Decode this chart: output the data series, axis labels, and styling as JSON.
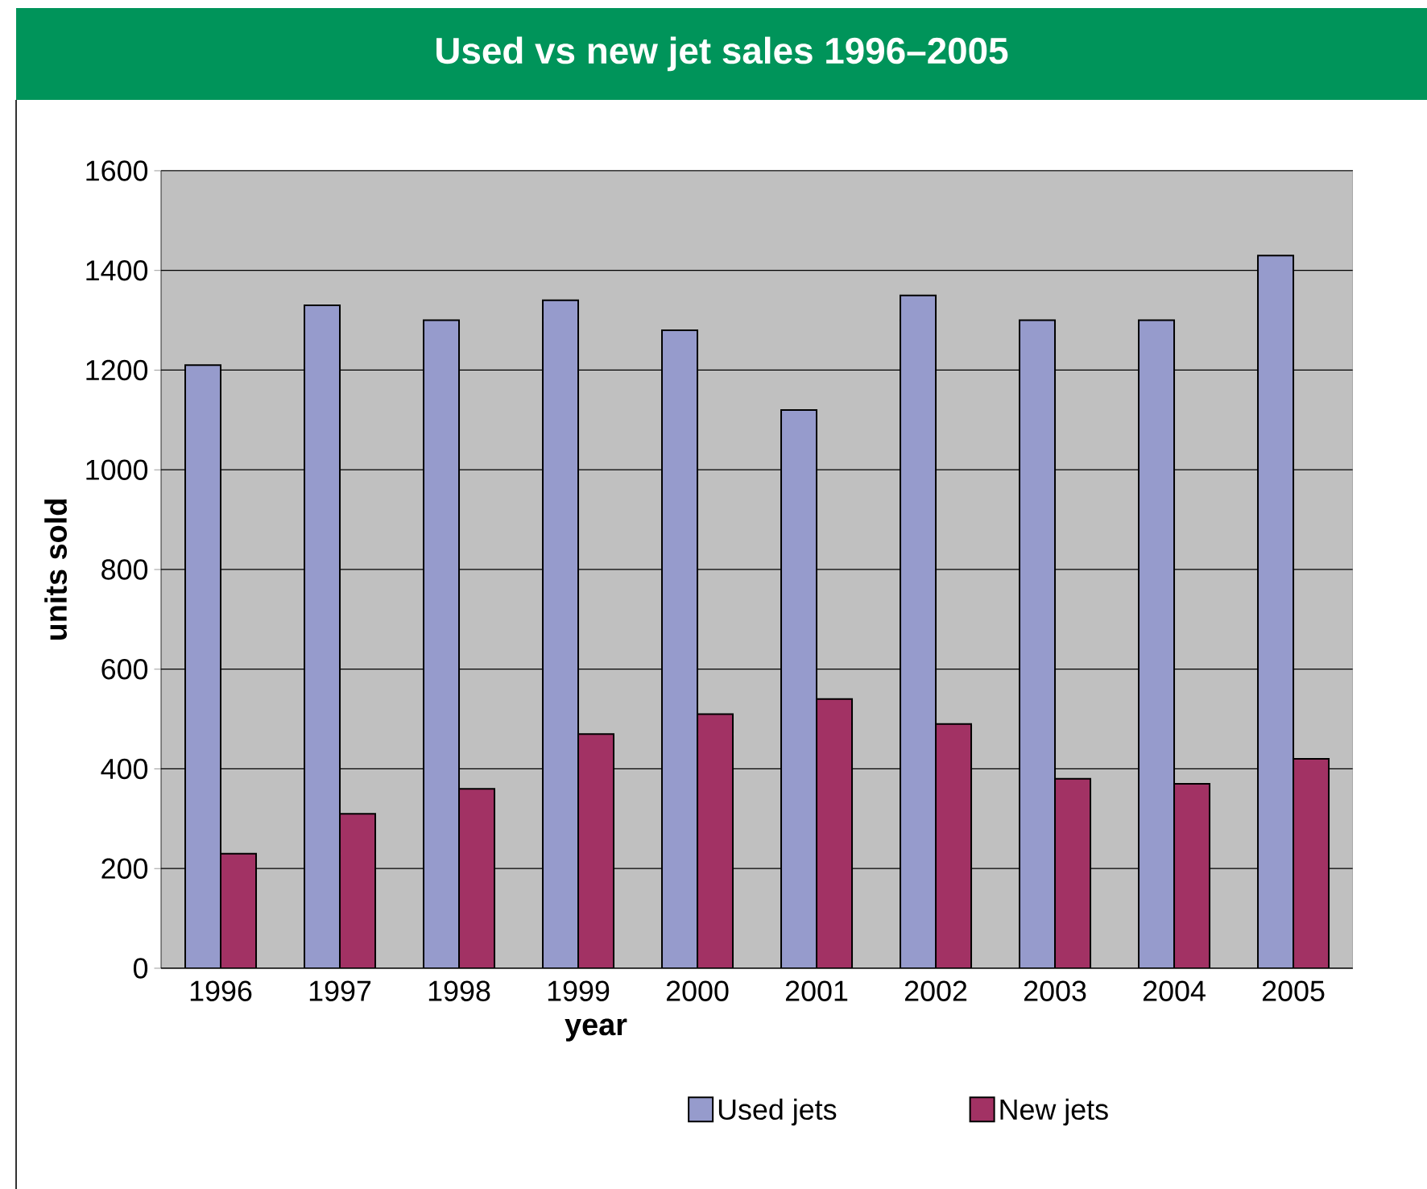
{
  "chart_data": {
    "type": "bar",
    "title": "Used vs new jet sales 1996–2005",
    "xlabel": "year",
    "ylabel": "units sold",
    "categories": [
      "1996",
      "1997",
      "1998",
      "1999",
      "2000",
      "2001",
      "2002",
      "2003",
      "2004",
      "2005"
    ],
    "series": [
      {
        "name": "Used jets",
        "color": "#969bcc",
        "values": [
          1210,
          1330,
          1300,
          1340,
          1280,
          1120,
          1350,
          1300,
          1300,
          1430
        ]
      },
      {
        "name": "New jets",
        "color": "#a23264",
        "values": [
          230,
          310,
          360,
          470,
          510,
          540,
          490,
          380,
          370,
          420
        ]
      }
    ],
    "ylim": [
      0,
      1600
    ],
    "yticks": [
      0,
      200,
      400,
      600,
      800,
      1000,
      1200,
      1400,
      1600
    ],
    "grid": "y",
    "legend": "bottom"
  }
}
